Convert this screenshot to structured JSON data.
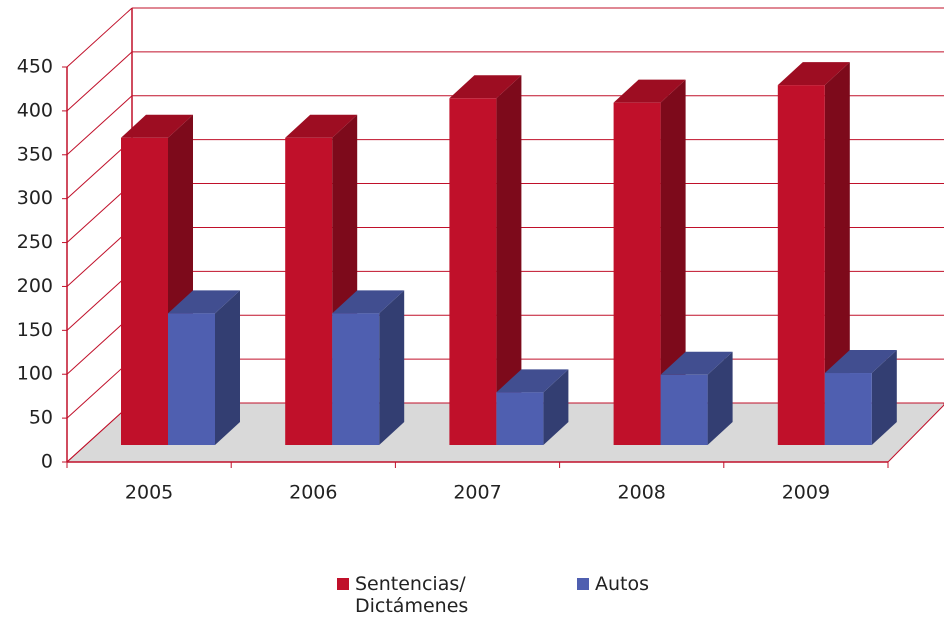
{
  "chart_data": {
    "type": "bar3d",
    "categories": [
      "2005",
      "2006",
      "2007",
      "2008",
      "2009"
    ],
    "series": [
      {
        "name": "Sentencias/ Dictámenes",
        "color": "#c0102a",
        "values": [
          350,
          350,
          395,
          390,
          410
        ]
      },
      {
        "name": "Autos",
        "color": "#4f5fb0",
        "values": [
          150,
          150,
          60,
          80,
          82
        ]
      }
    ],
    "ylim": [
      0,
      450
    ],
    "yticks": [
      0,
      50,
      100,
      150,
      200,
      250,
      300,
      350,
      400,
      450
    ],
    "grid": true
  }
}
